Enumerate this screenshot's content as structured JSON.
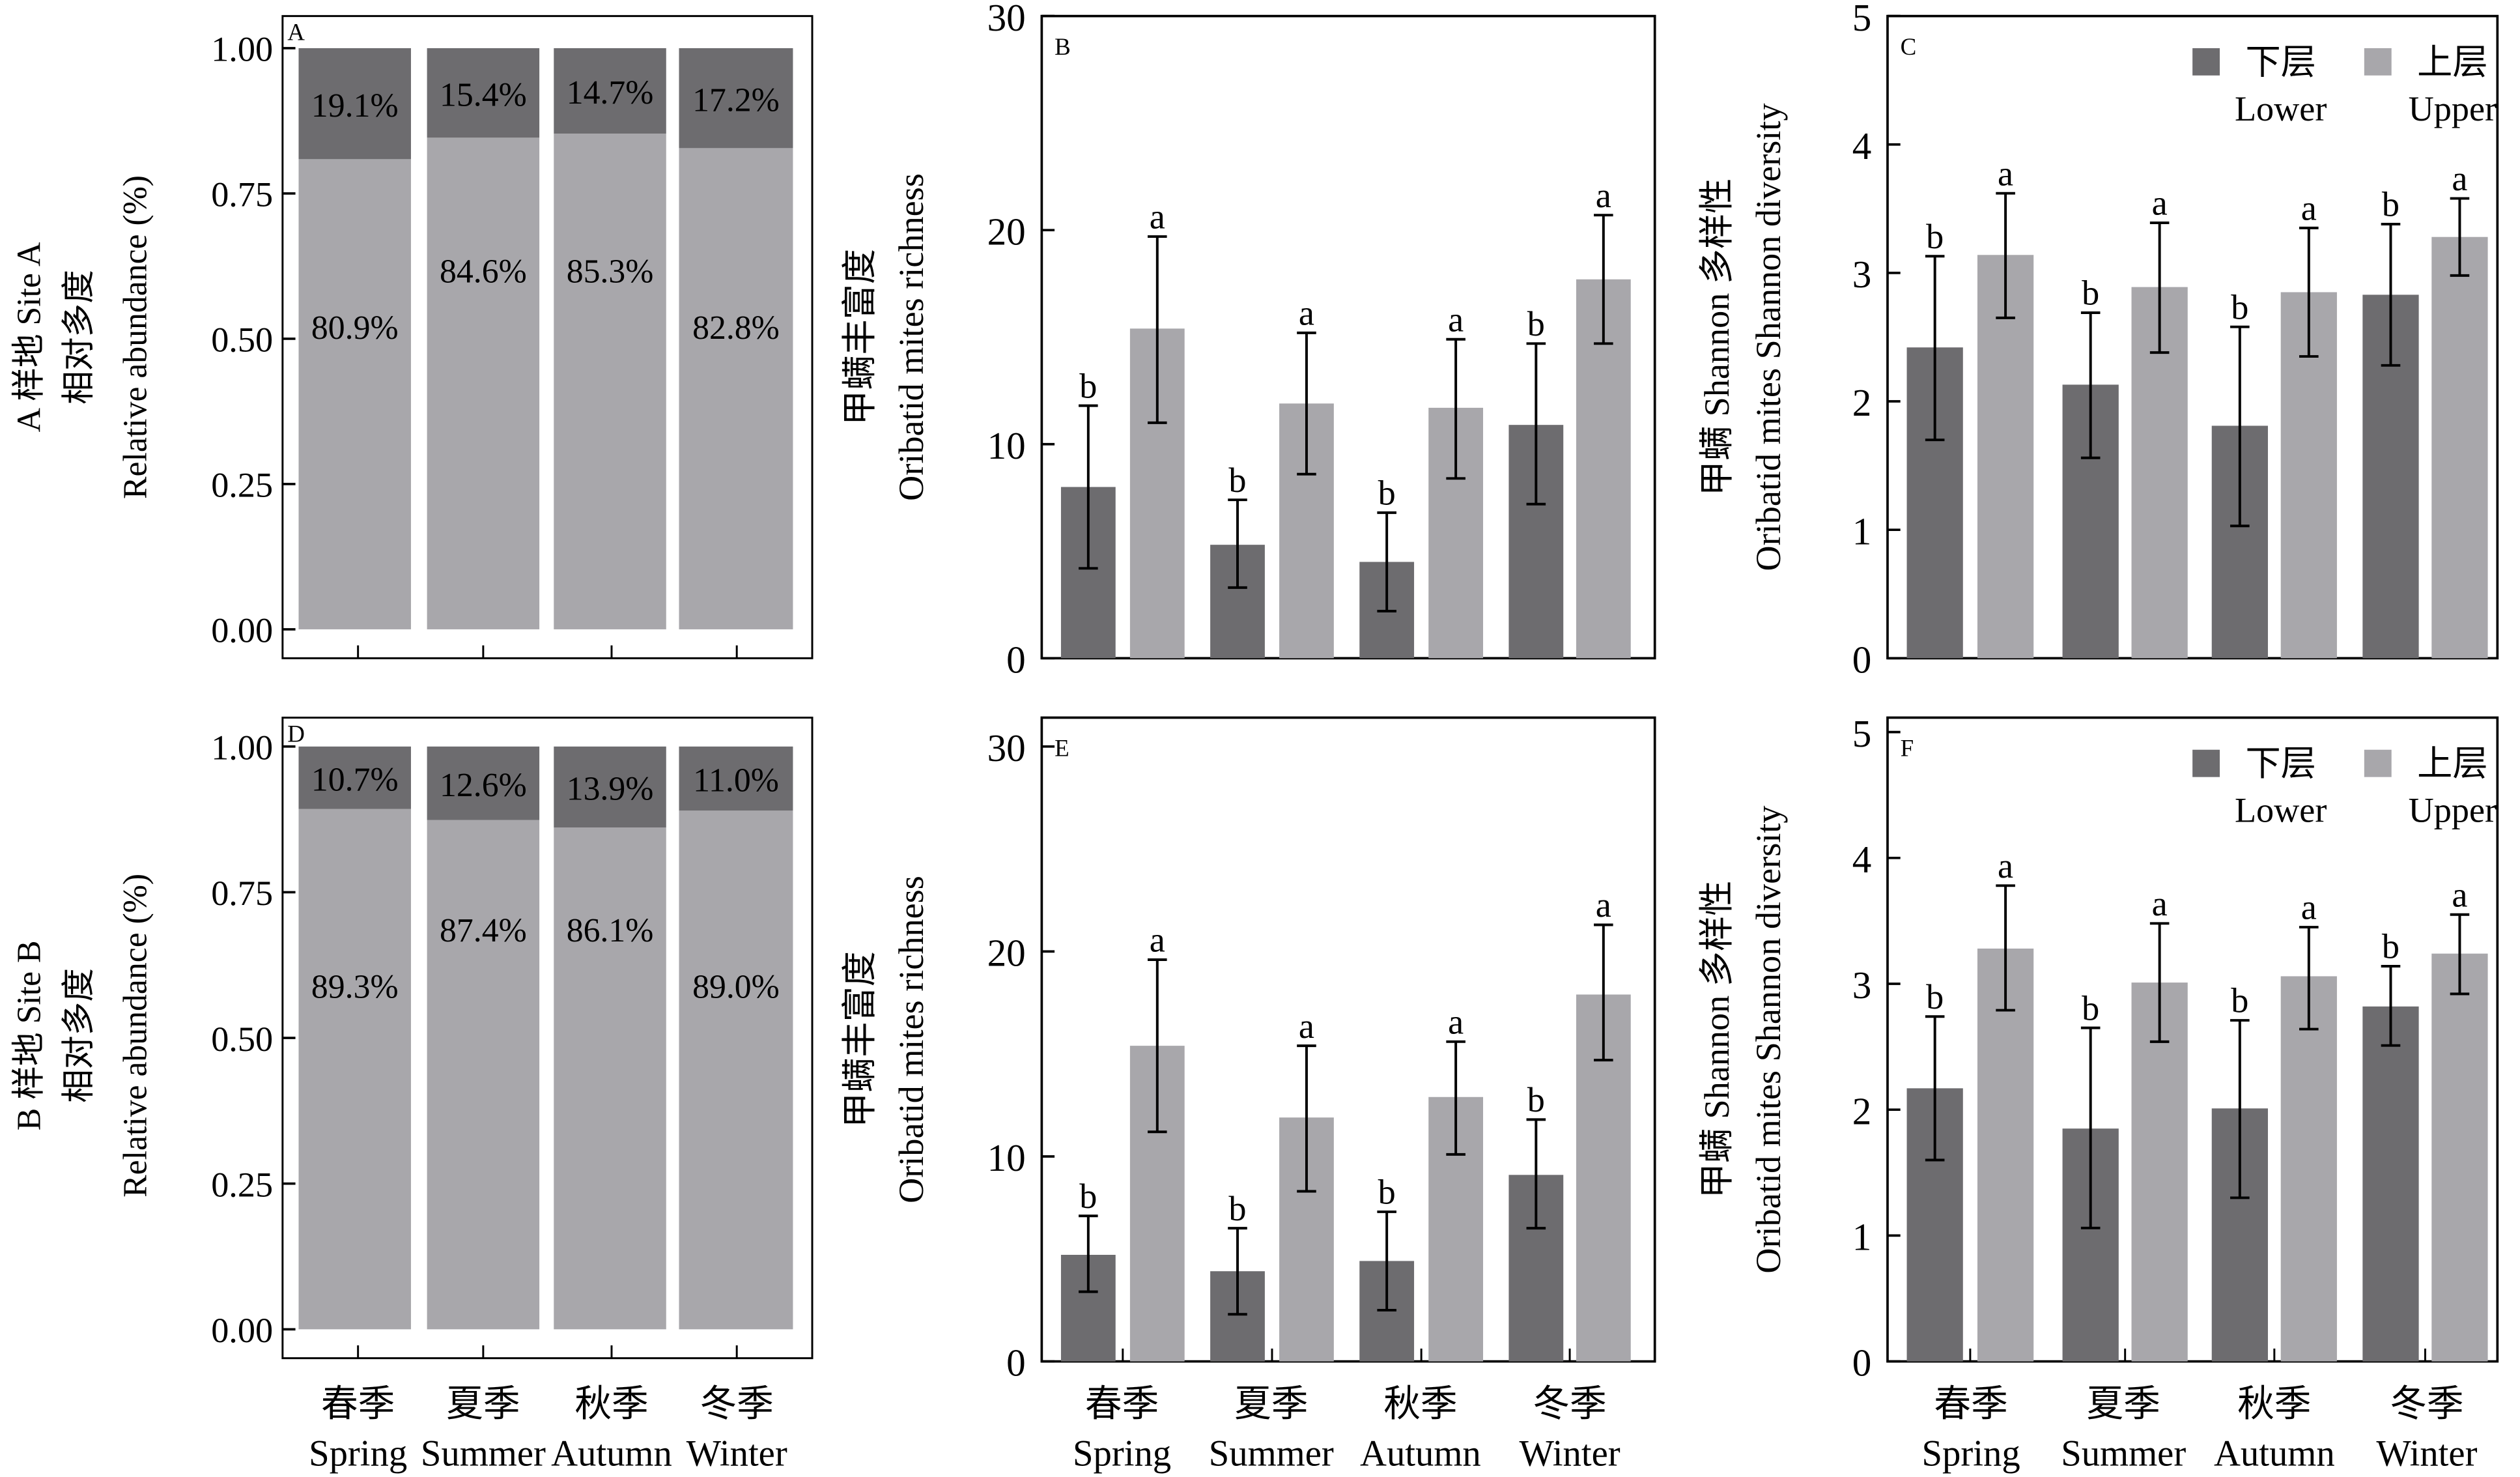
{
  "colors": {
    "lower": "#6d6c6f",
    "upper": "#a8a7ab",
    "axis": "#000000",
    "pct_text": "#ffffff"
  },
  "row_titles": [
    {
      "line1": "A 样地 Site A",
      "line2": "相对多度",
      "line3": "Relative abundance (%)"
    },
    {
      "line1": "B 样地 Site B",
      "line2": "相对多度",
      "line3": "Relative abundance (%)"
    }
  ],
  "x_categories": [
    {
      "zh": "春季",
      "en": "Spring"
    },
    {
      "zh": "夏季",
      "en": "Summer"
    },
    {
      "zh": "秋季",
      "en": "Autumn"
    },
    {
      "zh": "冬季",
      "en": "Winter"
    }
  ],
  "legend": [
    {
      "key": "lower",
      "zh": "下层",
      "en": "Lower"
    },
    {
      "key": "upper",
      "zh": "上层",
      "en": "Upper"
    }
  ],
  "chart_data": [
    {
      "panel": "A",
      "type": "bar",
      "stacked": true,
      "ylabel": "A 样地 Site A / 相对多度 / Relative abundance (%)",
      "ylim": [
        0,
        1
      ],
      "yticks": [
        "0.00",
        "0.25",
        "0.50",
        "0.75",
        "1.00"
      ],
      "categories": [
        "春季 Spring",
        "夏季 Summer",
        "秋季 Autumn",
        "冬季 Winter"
      ],
      "series": [
        {
          "name": "Upper (bottom segment)",
          "values": [
            0.809,
            0.846,
            0.853,
            0.828
          ],
          "labels": [
            "80.9%",
            "84.6%",
            "85.3%",
            "82.8%"
          ]
        },
        {
          "name": "Lower (top segment)",
          "values": [
            0.191,
            0.154,
            0.147,
            0.172
          ],
          "labels": [
            "19.1%",
            "15.4%",
            "14.7%",
            "17.2%"
          ]
        }
      ]
    },
    {
      "panel": "B",
      "type": "bar",
      "ylabel_zh": "甲螨丰富度",
      "ylabel": "Oribatid mites richness",
      "ylim": [
        0,
        30
      ],
      "yticks": [
        "0",
        "10",
        "20",
        "30"
      ],
      "categories": [
        "春季 Spring",
        "夏季 Summer",
        "秋季 Autumn",
        "冬季 Winter"
      ],
      "series": [
        {
          "name": "下层 Lower",
          "values": [
            8.0,
            5.3,
            4.5,
            10.9
          ],
          "err_low": [
            4.2,
            3.3,
            2.2,
            7.2
          ],
          "err_high": [
            11.8,
            7.4,
            6.8,
            14.7
          ],
          "letters": [
            "b",
            "b",
            "b",
            "b"
          ]
        },
        {
          "name": "上层 Upper",
          "values": [
            15.4,
            11.9,
            11.7,
            17.7
          ],
          "err_low": [
            11.0,
            8.6,
            8.4,
            14.7
          ],
          "err_high": [
            19.7,
            15.2,
            14.9,
            20.7
          ],
          "letters": [
            "a",
            "a",
            "a",
            "a"
          ]
        }
      ]
    },
    {
      "panel": "C",
      "type": "bar",
      "ylabel_zh": "甲螨 Shannon 多样性",
      "ylabel": "Oribatid mites Shannon diversity",
      "ylim": [
        0,
        5
      ],
      "yticks": [
        "0",
        "1",
        "2",
        "3",
        "4",
        "5"
      ],
      "legend": "top-right",
      "categories": [
        "春季 Spring",
        "夏季 Summer",
        "秋季 Autumn",
        "冬季 Winter"
      ],
      "series": [
        {
          "name": "下层 Lower",
          "values": [
            2.42,
            2.13,
            1.81,
            2.83
          ],
          "err_low": [
            1.7,
            1.56,
            1.03,
            2.28
          ],
          "err_high": [
            3.13,
            2.69,
            2.58,
            3.38
          ],
          "letters": [
            "b",
            "b",
            "b",
            "b"
          ]
        },
        {
          "name": "上层 Upper",
          "values": [
            3.14,
            2.89,
            2.85,
            3.28
          ],
          "err_low": [
            2.65,
            2.38,
            2.35,
            2.98
          ],
          "err_high": [
            3.62,
            3.39,
            3.35,
            3.58
          ],
          "letters": [
            "a",
            "a",
            "a",
            "a"
          ]
        }
      ]
    },
    {
      "panel": "D",
      "type": "bar",
      "stacked": true,
      "ylabel": "B 样地 Site B / 相对多度 / Relative abundance (%)",
      "ylim": [
        0,
        1
      ],
      "yticks": [
        "0.00",
        "0.25",
        "0.50",
        "0.75",
        "1.00"
      ],
      "categories": [
        "春季 Spring",
        "夏季 Summer",
        "秋季 Autumn",
        "冬季 Winter"
      ],
      "series": [
        {
          "name": "Upper (bottom segment)",
          "values": [
            0.893,
            0.874,
            0.861,
            0.89
          ],
          "labels": [
            "89.3%",
            "87.4%",
            "86.1%",
            "89.0%"
          ]
        },
        {
          "name": "Lower (top segment)",
          "values": [
            0.107,
            0.126,
            0.139,
            0.11
          ],
          "labels": [
            "10.7%",
            "12.6%",
            "13.9%",
            "11.0%"
          ]
        }
      ]
    },
    {
      "panel": "E",
      "type": "bar",
      "ylabel_zh": "甲螨丰富度",
      "ylabel": "Oribatid mites richness",
      "ylim": [
        0,
        30
      ],
      "yticks": [
        "0",
        "10",
        "20",
        "30"
      ],
      "categories": [
        "春季 Spring",
        "夏季 Summer",
        "秋季 Autumn",
        "冬季 Winter"
      ],
      "series": [
        {
          "name": "下层 Lower",
          "values": [
            5.2,
            4.4,
            4.9,
            9.1
          ],
          "err_low": [
            3.4,
            2.3,
            2.5,
            6.5
          ],
          "err_high": [
            7.1,
            6.5,
            7.3,
            11.8
          ],
          "letters": [
            "b",
            "b",
            "b",
            "b"
          ]
        },
        {
          "name": "上层 Upper",
          "values": [
            15.4,
            11.9,
            12.9,
            17.9
          ],
          "err_low": [
            11.2,
            8.3,
            10.1,
            14.7
          ],
          "err_high": [
            19.6,
            15.4,
            15.6,
            21.3
          ],
          "letters": [
            "a",
            "a",
            "a",
            "a"
          ]
        }
      ]
    },
    {
      "panel": "F",
      "type": "bar",
      "ylabel_zh": "甲螨 Shannon 多样性",
      "ylabel": "Oribatid mites Shannon diversity",
      "ylim": [
        0,
        5
      ],
      "yticks": [
        "0",
        "1",
        "2",
        "3",
        "4",
        "5"
      ],
      "legend": "top-right",
      "categories": [
        "春季 Spring",
        "夏季 Summer",
        "秋季 Autumn",
        "冬季 Winter"
      ],
      "series": [
        {
          "name": "下层 Lower",
          "values": [
            2.17,
            1.85,
            2.01,
            2.82
          ],
          "err_low": [
            1.6,
            1.06,
            1.3,
            2.51
          ],
          "err_high": [
            2.74,
            2.65,
            2.71,
            3.14
          ],
          "letters": [
            "b",
            "b",
            "b",
            "b"
          ]
        },
        {
          "name": "上层 Upper",
          "values": [
            3.28,
            3.01,
            3.06,
            3.24
          ],
          "err_low": [
            2.79,
            2.54,
            2.64,
            2.92
          ],
          "err_high": [
            3.78,
            3.48,
            3.45,
            3.55
          ],
          "letters": [
            "a",
            "a",
            "a",
            "a"
          ]
        }
      ]
    }
  ]
}
